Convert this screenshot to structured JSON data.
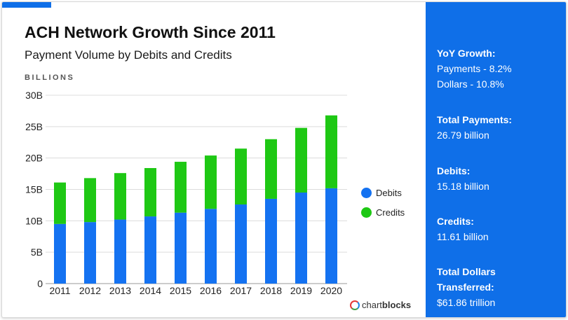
{
  "header": {
    "title": "ACH Network Growth Since 2011",
    "subtitle": "Payment Volume by Debits and Credits",
    "units": "BILLIONS"
  },
  "brand": {
    "prefix": "chart",
    "bold": "blocks"
  },
  "colors": {
    "debits": "#1472f1",
    "credits": "#1ec814",
    "accent": "#0f6fe8"
  },
  "chart_data": {
    "type": "bar",
    "stacked": true,
    "categories": [
      "2011",
      "2012",
      "2013",
      "2014",
      "2015",
      "2016",
      "2017",
      "2018",
      "2019",
      "2020"
    ],
    "series": [
      {
        "name": "Debits",
        "values": [
          9.5,
          9.8,
          10.2,
          10.7,
          11.3,
          11.9,
          12.6,
          13.5,
          14.5,
          15.18
        ]
      },
      {
        "name": "Credits",
        "values": [
          6.6,
          7.0,
          7.4,
          7.7,
          8.1,
          8.5,
          8.9,
          9.5,
          10.3,
          11.61
        ]
      }
    ],
    "ylim": [
      0,
      30
    ],
    "yticks": [
      0,
      5,
      10,
      15,
      20,
      25,
      30
    ],
    "ytick_labels": [
      "0",
      "5B",
      "10B",
      "15B",
      "20B",
      "25B",
      "30B"
    ],
    "ylabel": "BILLIONS",
    "xlabel": "",
    "legend": "right",
    "grid": true
  },
  "sidebar": [
    {
      "heading": "YoY Growth:",
      "lines": [
        "Payments - 8.2%",
        "Dollars - 10.8%"
      ]
    },
    {
      "heading": "Total Payments:",
      "lines": [
        "26.79 billion"
      ]
    },
    {
      "heading": "Debits:",
      "lines": [
        "15.18 billion"
      ]
    },
    {
      "heading": "Credits:",
      "lines": [
        "11.61 billion"
      ]
    },
    {
      "heading": "Total Dollars Transferred:",
      "lines": [
        "$61.86 trillion"
      ]
    }
  ]
}
